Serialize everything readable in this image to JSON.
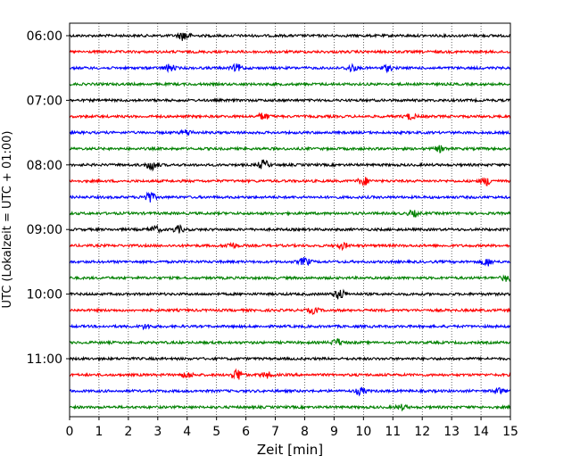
{
  "chart_data": {
    "type": "line",
    "subtype": "helicorder",
    "xlabel": "Zeit  [min]",
    "ylabel": "UTC (Lokalzeit = UTC + 01:00)",
    "xlim": [
      0,
      15
    ],
    "x_ticks": [
      0,
      1,
      2,
      3,
      4,
      5,
      6,
      7,
      8,
      9,
      10,
      11,
      12,
      13,
      14,
      15
    ],
    "x_tick_labels": [
      "0",
      "1",
      "2",
      "3",
      "4",
      "5",
      "6",
      "7",
      "8",
      "9",
      "10",
      "11",
      "12",
      "13",
      "14",
      "15"
    ],
    "vertical_grid": true,
    "trace_minutes_per_line": 15,
    "start_time": "06:00",
    "y_tick_labels": [
      "06:00",
      "07:00",
      "08:00",
      "09:00",
      "10:00",
      "11:00"
    ],
    "color_cycle": [
      "#000000",
      "#ff0000",
      "#0000ff",
      "#008000"
    ],
    "series": [
      {
        "start": "06:00",
        "color": "#000000",
        "events": [
          [
            3.9,
            0.9
          ]
        ]
      },
      {
        "start": "06:15",
        "color": "#ff0000",
        "events": []
      },
      {
        "start": "06:30",
        "color": "#0000ff",
        "events": [
          [
            3.4,
            0.6
          ],
          [
            5.7,
            0.6
          ],
          [
            9.6,
            0.6
          ],
          [
            10.8,
            0.5
          ]
        ]
      },
      {
        "start": "06:45",
        "color": "#008000",
        "events": []
      },
      {
        "start": "07:00",
        "color": "#000000",
        "events": []
      },
      {
        "start": "07:15",
        "color": "#ff0000",
        "events": [
          [
            6.6,
            0.6
          ],
          [
            11.6,
            0.5
          ]
        ]
      },
      {
        "start": "07:30",
        "color": "#0000ff",
        "events": [
          [
            4.0,
            0.5
          ]
        ]
      },
      {
        "start": "07:45",
        "color": "#008000",
        "events": [
          [
            12.6,
            0.5
          ]
        ]
      },
      {
        "start": "08:00",
        "color": "#000000",
        "events": [
          [
            2.8,
            0.9
          ],
          [
            6.6,
            0.8
          ]
        ]
      },
      {
        "start": "08:15",
        "color": "#ff0000",
        "events": [
          [
            10.0,
            0.7
          ],
          [
            14.2,
            0.7
          ]
        ]
      },
      {
        "start": "08:30",
        "color": "#0000ff",
        "events": [
          [
            2.7,
            1.0
          ]
        ]
      },
      {
        "start": "08:45",
        "color": "#008000",
        "events": [
          [
            11.7,
            0.5
          ]
        ]
      },
      {
        "start": "09:00",
        "color": "#000000",
        "events": [
          [
            2.9,
            0.6
          ],
          [
            3.7,
            0.6
          ]
        ]
      },
      {
        "start": "09:15",
        "color": "#ff0000",
        "events": [
          [
            5.5,
            0.5
          ],
          [
            9.3,
            0.5
          ]
        ]
      },
      {
        "start": "09:30",
        "color": "#0000ff",
        "events": [
          [
            8.0,
            0.7
          ],
          [
            14.2,
            0.7
          ]
        ]
      },
      {
        "start": "09:45",
        "color": "#008000",
        "events": [
          [
            14.9,
            0.6
          ]
        ]
      },
      {
        "start": "10:00",
        "color": "#000000",
        "events": [
          [
            9.2,
            0.9
          ]
        ]
      },
      {
        "start": "10:15",
        "color": "#ff0000",
        "events": [
          [
            8.3,
            0.5
          ]
        ]
      },
      {
        "start": "10:30",
        "color": "#0000ff",
        "events": [
          [
            2.6,
            0.4
          ]
        ]
      },
      {
        "start": "10:45",
        "color": "#008000",
        "events": [
          [
            9.1,
            0.6
          ]
        ]
      },
      {
        "start": "11:00",
        "color": "#000000",
        "events": []
      },
      {
        "start": "11:15",
        "color": "#ff0000",
        "events": [
          [
            5.7,
            1.0
          ],
          [
            4.0,
            0.5
          ],
          [
            6.7,
            0.5
          ]
        ]
      },
      {
        "start": "11:30",
        "color": "#0000ff",
        "events": [
          [
            9.9,
            0.6
          ],
          [
            14.6,
            0.5
          ]
        ]
      },
      {
        "start": "11:45",
        "color": "#008000",
        "events": [
          [
            11.3,
            0.4
          ]
        ]
      }
    ]
  }
}
